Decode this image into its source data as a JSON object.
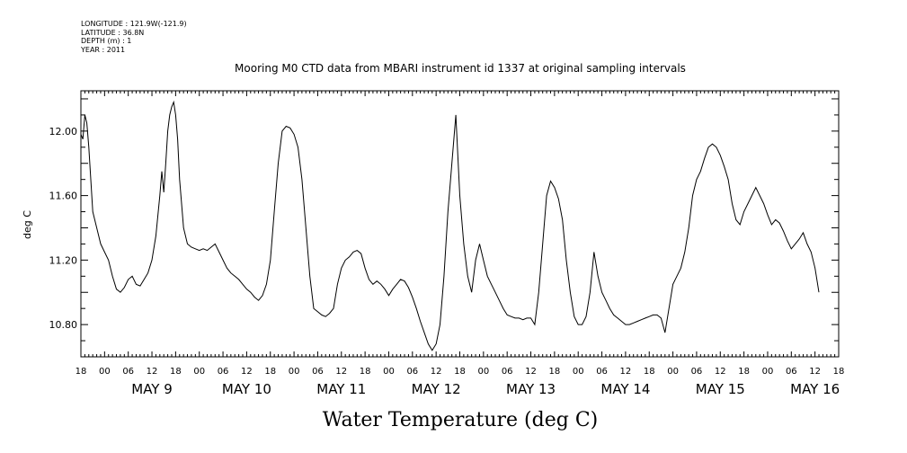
{
  "meta": {
    "longitude": "LONGITUDE : 121.9W(-121.9)",
    "latitude": "LATITUDE : 36.8N",
    "depth": "DEPTH (m) : 1",
    "year": "YEAR : 2011"
  },
  "chart_data": {
    "type": "line",
    "title": "Mooring M0 CTD data from MBARI instrument id 1337 at original sampling intervals",
    "xlabel": "Water Temperature (deg C)",
    "ylabel": "deg C",
    "ylim": [
      10.6,
      12.25
    ],
    "yticks": [
      "10.80",
      "11.20",
      "11.60",
      "12.00"
    ],
    "xrange_hours": [
      "2011-05-08 18:00",
      "2011-05-16 18:00"
    ],
    "hour_ticks": [
      "18",
      "00",
      "06",
      "12",
      "18",
      "00",
      "06",
      "12",
      "18",
      "00",
      "06",
      "12",
      "18",
      "00",
      "06",
      "12",
      "18",
      "00",
      "06",
      "12",
      "18",
      "00",
      "06",
      "12",
      "18",
      "00",
      "06",
      "12",
      "18",
      "00",
      "06",
      "12",
      "18"
    ],
    "day_labels": [
      "MAY  9",
      "MAY 10",
      "MAY 11",
      "MAY 12",
      "MAY 13",
      "MAY 14",
      "MAY 15",
      "MAY 16"
    ],
    "grid": false,
    "legend": "none",
    "series": [
      {
        "color": "#000000",
        "x_hours_since_may8_18": [
          0,
          0.5,
          1,
          1.5,
          2,
          2.5,
          3,
          4,
          5,
          6,
          7,
          8,
          9,
          10,
          11,
          12,
          13,
          14,
          15,
          16,
          17,
          18,
          19,
          20,
          20.5,
          21,
          21.5,
          22,
          22.5,
          23,
          23.5,
          24,
          24.5,
          25,
          26,
          27,
          28,
          29,
          30,
          31,
          32,
          33,
          34,
          35,
          36,
          37,
          38,
          39,
          40,
          41,
          42,
          43,
          44,
          45,
          46,
          47,
          48,
          49,
          50,
          51,
          52,
          53,
          54,
          55,
          56,
          57,
          58,
          59,
          60,
          61,
          62,
          63,
          64,
          65,
          66,
          67,
          68,
          69,
          70,
          71,
          72,
          73,
          74,
          75,
          76,
          77,
          78,
          79,
          80,
          81,
          82,
          83,
          84,
          85,
          86,
          87,
          88,
          89,
          90,
          91,
          92,
          93,
          94,
          95,
          96,
          97,
          98,
          99,
          100,
          101,
          102,
          103,
          104,
          105,
          106,
          107,
          108,
          109,
          110,
          111,
          112,
          113,
          114,
          115,
          116,
          117,
          118,
          119,
          120,
          121,
          122,
          123,
          124,
          125,
          126,
          127,
          128,
          129,
          130,
          131,
          132,
          133,
          134,
          135,
          136,
          137,
          138,
          139,
          140,
          141,
          142,
          143,
          144,
          145,
          146,
          147,
          148,
          149,
          150,
          151,
          152,
          153,
          154,
          155,
          156,
          157,
          158,
          159,
          160,
          161,
          162,
          163,
          164,
          165,
          166,
          167,
          168,
          169,
          170,
          171,
          172,
          173,
          174,
          175,
          176,
          177,
          178,
          179,
          180,
          181,
          182,
          183,
          184,
          185,
          186,
          187,
          188,
          189,
          190,
          191,
          192
        ],
        "values": [
          11.98,
          11.95,
          12.1,
          12.05,
          11.9,
          11.7,
          11.5,
          11.4,
          11.3,
          11.25,
          11.2,
          11.1,
          11.02,
          11.0,
          11.03,
          11.08,
          11.1,
          11.05,
          11.04,
          11.08,
          11.12,
          11.2,
          11.35,
          11.6,
          11.75,
          11.62,
          11.8,
          12.0,
          12.1,
          12.15,
          12.18,
          12.1,
          11.95,
          11.7,
          11.4,
          11.3,
          11.28,
          11.27,
          11.26,
          11.27,
          11.26,
          11.28,
          11.3,
          11.25,
          11.2,
          11.15,
          11.12,
          11.1,
          11.08,
          11.05,
          11.02,
          11.0,
          10.97,
          10.95,
          10.98,
          11.05,
          11.2,
          11.5,
          11.8,
          12.0,
          12.03,
          12.02,
          11.98,
          11.9,
          11.7,
          11.4,
          11.1,
          10.9,
          10.88,
          10.86,
          10.85,
          10.87,
          10.9,
          11.05,
          11.15,
          11.2,
          11.22,
          11.25,
          11.26,
          11.24,
          11.15,
          11.08,
          11.05,
          11.07,
          11.05,
          11.02,
          10.98,
          11.02,
          11.05,
          11.08,
          11.07,
          11.03,
          10.97,
          10.9,
          10.82,
          10.75,
          10.68,
          10.64,
          10.68,
          10.8,
          11.1,
          11.5,
          11.8,
          12.1,
          11.6,
          11.3,
          11.1,
          11.0,
          11.2,
          11.3,
          11.2,
          11.1,
          11.05,
          11.0,
          10.95,
          10.9,
          10.86,
          10.85,
          10.84,
          10.84,
          10.83,
          10.84,
          10.84,
          10.8,
          11.0,
          11.3,
          11.6,
          11.69,
          11.65,
          11.58,
          11.45,
          11.2,
          11.0,
          10.85,
          10.8,
          10.8,
          10.85,
          11.0,
          11.25,
          11.1,
          11.0,
          10.95,
          10.9,
          10.86,
          10.84,
          10.82,
          10.8,
          10.8,
          10.81,
          10.82,
          10.83,
          10.84,
          10.85,
          10.86,
          10.86,
          10.84,
          10.75,
          10.9,
          11.05,
          11.1,
          11.15,
          11.25,
          11.4,
          11.6,
          11.7,
          11.75,
          11.83,
          11.9,
          11.92,
          11.9,
          11.85,
          11.78,
          11.7,
          11.55,
          11.45,
          11.42,
          11.5,
          11.55,
          11.6,
          11.65,
          11.6,
          11.55,
          11.48,
          11.42,
          11.45,
          11.43,
          11.38,
          11.32,
          11.27,
          11.3,
          11.33,
          11.37,
          11.3,
          11.25,
          11.15,
          11.0
        ]
      }
    ]
  }
}
